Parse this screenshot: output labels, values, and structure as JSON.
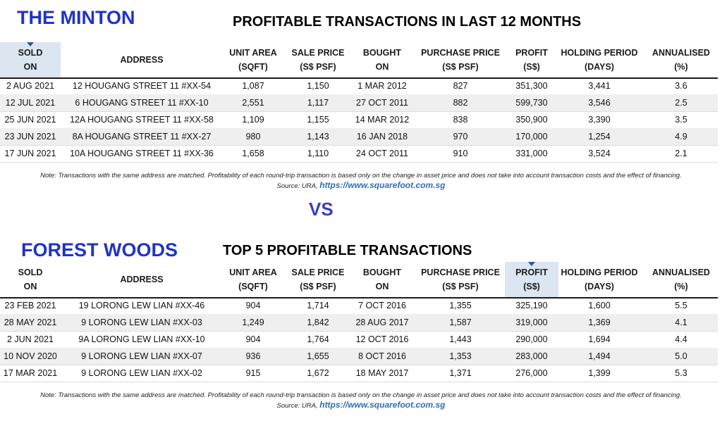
{
  "minton": {
    "project_name": "THE MINTON",
    "table_title": "PROFITABLE TRANSACTIONS IN LAST 12 MONTHS",
    "headers": [
      {
        "l1": "SOLD",
        "l2": "ON"
      },
      {
        "l1": "ADDRESS",
        "l2": ""
      },
      {
        "l1": "UNIT AREA",
        "l2": "(SQFT)"
      },
      {
        "l1": "SALE PRICE",
        "l2": "(S$ PSF)"
      },
      {
        "l1": "BOUGHT",
        "l2": "ON"
      },
      {
        "l1": "PURCHASE PRICE",
        "l2": "(S$ PSF)"
      },
      {
        "l1": "PROFIT",
        "l2": "(S$)"
      },
      {
        "l1": "HOLDING PERIOD",
        "l2": "(DAYS)"
      },
      {
        "l1": "ANNUALISED",
        "l2": "(%)"
      }
    ],
    "sorted_column": 0,
    "rows": [
      [
        "2 AUG 2021",
        "12 HOUGANG STREET 11 #XX-54",
        "1,087",
        "1,150",
        "1 MAR 2012",
        "827",
        "351,300",
        "3,441",
        "3.6"
      ],
      [
        "12 JUL 2021",
        "6 HOUGANG STREET 11 #XX-10",
        "2,551",
        "1,117",
        "27 OCT 2011",
        "882",
        "599,730",
        "3,546",
        "2.5"
      ],
      [
        "25 JUN 2021",
        "12A HOUGANG STREET 11 #XX-58",
        "1,109",
        "1,155",
        "14 MAR 2012",
        "838",
        "350,900",
        "3,390",
        "3.5"
      ],
      [
        "23 JUN 2021",
        "8A HOUGANG STREET 11 #XX-27",
        "980",
        "1,143",
        "16 JAN 2018",
        "970",
        "170,000",
        "1,254",
        "4.9"
      ],
      [
        "17 JUN 2021",
        "10A HOUGANG STREET 11 #XX-36",
        "1,658",
        "1,110",
        "24 OCT 2011",
        "910",
        "331,000",
        "3,524",
        "2.1"
      ]
    ],
    "note": "Note: Transactions with the same address are matched. Profitability of each round-trip transaction is based only on the change in asset price and does not take into account transaction costs and the effect of financing.",
    "source_prefix": "Source: URA,",
    "source_link": "https://www.squarefoot.com.sg"
  },
  "vs_label": "VS",
  "forest": {
    "project_name": "FOREST WOODS",
    "table_title": "TOP 5 PROFITABLE TRANSACTIONS",
    "headers": [
      {
        "l1": "SOLD",
        "l2": "ON"
      },
      {
        "l1": "ADDRESS",
        "l2": ""
      },
      {
        "l1": "UNIT AREA",
        "l2": "(SQFT)"
      },
      {
        "l1": "SALE PRICE",
        "l2": "(S$ PSF)"
      },
      {
        "l1": "BOUGHT",
        "l2": "ON"
      },
      {
        "l1": "PURCHASE PRICE",
        "l2": "(S$ PSF)"
      },
      {
        "l1": "PROFIT",
        "l2": "(S$)"
      },
      {
        "l1": "HOLDING PERIOD",
        "l2": "(DAYS)"
      },
      {
        "l1": "ANNUALISED",
        "l2": "(%)"
      }
    ],
    "sorted_column": 6,
    "rows": [
      [
        "23 FEB 2021",
        "19 LORONG LEW LIAN #XX-46",
        "904",
        "1,714",
        "7 OCT 2016",
        "1,355",
        "325,190",
        "1,600",
        "5.5"
      ],
      [
        "28 MAY 2021",
        "9 LORONG LEW LIAN #XX-03",
        "1,249",
        "1,842",
        "28 AUG 2017",
        "1,587",
        "319,000",
        "1,369",
        "4.1"
      ],
      [
        "2 JUN 2021",
        "9A LORONG LEW LIAN #XX-10",
        "904",
        "1,764",
        "12 OCT 2016",
        "1,443",
        "290,000",
        "1,694",
        "4.4"
      ],
      [
        "10 NOV 2020",
        "9 LORONG LEW LIAN #XX-07",
        "936",
        "1,655",
        "8 OCT 2016",
        "1,353",
        "283,000",
        "1,494",
        "5.0"
      ],
      [
        "17 MAR 2021",
        "9 LORONG LEW LIAN #XX-02",
        "915",
        "1,672",
        "18 MAY 2017",
        "1,371",
        "276,000",
        "1,399",
        "5.3"
      ]
    ],
    "note": "Note: Transactions with the same address are matched. Profitability of each round-trip transaction is based only on the change in asset price and does not take into account transaction costs and the effect of financing.",
    "source_prefix": "Source: URA,",
    "source_link": "https://www.squarefoot.com.sg"
  }
}
